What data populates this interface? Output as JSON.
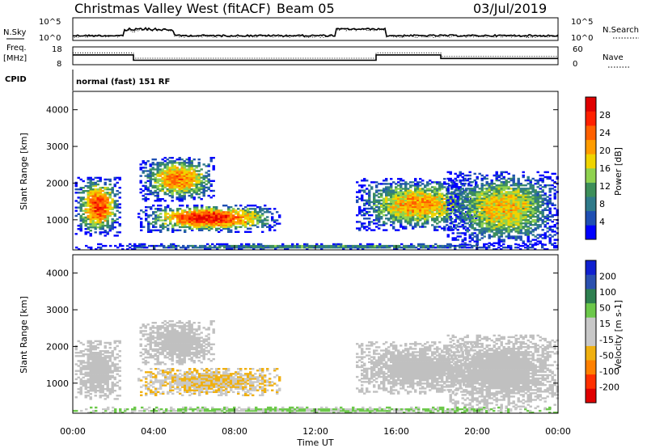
{
  "header": {
    "title": "Christmas Valley West (fitACF)",
    "beam": "Beam 05",
    "date": "03/Jul/2019"
  },
  "panel_labels": {
    "nsky": "N.Sky",
    "nsearch": "N.Search",
    "freq_line1": "Freq.",
    "freq_line2": "[MHz]",
    "nave": "Nave",
    "cpid": "CPID",
    "cpid_value": "normal (fast) 151 RF"
  },
  "colors": {
    "power_scale": [
      "#0000ff",
      "#1f4fb3",
      "#2f7a8a",
      "#3d8f5a",
      "#8fd24f",
      "#f0d400",
      "#ff9c00",
      "#ff6000",
      "#ff2000",
      "#e00000"
    ],
    "velocity_scale": [
      "#1020d0",
      "#2a50b0",
      "#2e7f50",
      "#6cc84a",
      "#c8c8c8",
      "#c8c8c8",
      "#f0b010",
      "#ff8000",
      "#ff3000",
      "#e00000"
    ],
    "ground_scatter": "#c0c0c0"
  },
  "chart_data": [
    {
      "type": "line",
      "name": "noise-panel",
      "left_label": "N.Sky",
      "right_label": "N.Search",
      "left_ticks": [
        "10^5",
        "10^0"
      ],
      "right_ticks": [
        "10^5",
        "10^0"
      ],
      "x": [
        "00:00",
        "04:00",
        "08:00",
        "12:00",
        "16:00",
        "20:00",
        "00:00"
      ],
      "yscale": "log"
    },
    {
      "type": "line",
      "name": "freq-panel",
      "left_label": "Freq. [MHz]",
      "right_label": "Nave",
      "left_ticks": [
        "18",
        "8"
      ],
      "right_ticks": [
        "60",
        "0"
      ],
      "ylim_left": [
        8,
        18
      ],
      "ylim_right": [
        0,
        60
      ],
      "freq_steps": [
        {
          "from": 0.0,
          "to": 3.0,
          "value": 13.5
        },
        {
          "from": 3.0,
          "to": 15.0,
          "value": 10.5
        },
        {
          "from": 15.0,
          "to": 18.2,
          "value": 13.5
        },
        {
          "from": 18.2,
          "to": 24.0,
          "value": 11.5
        }
      ]
    },
    {
      "type": "heatmap",
      "name": "power-panel",
      "ylabel": "Slant Range [km]",
      "y_ticks": [
        "1000",
        "2000",
        "3000",
        "4000"
      ],
      "ylim": [
        180,
        4500
      ],
      "xlim_hours": [
        0,
        24
      ],
      "colorbar_label": "Power [dB]",
      "colorbar_ticks": [
        "4",
        "8",
        "12",
        "16",
        "20",
        "24",
        "28"
      ],
      "clim": [
        0,
        30
      ]
    },
    {
      "type": "heatmap",
      "name": "velocity-panel",
      "ylabel": "Slant Range [km]",
      "xlabel": "Time UT",
      "x_ticks": [
        "00:00",
        "04:00",
        "08:00",
        "12:00",
        "16:00",
        "20:00",
        "00:00"
      ],
      "y_ticks": [
        "1000",
        "2000",
        "3000",
        "4000"
      ],
      "ylim": [
        180,
        4500
      ],
      "xlim_hours": [
        0,
        24
      ],
      "colorbar_label": "Velocity [m s-1]",
      "colorbar_ticks": [
        "200",
        "100",
        "50",
        "15",
        "-15",
        "-50",
        "-100",
        "-200"
      ],
      "clim": [
        -250,
        250
      ]
    }
  ],
  "scatter_regions": [
    {
      "t0": 0.1,
      "t1": 2.3,
      "r0": 550,
      "r1": 2150,
      "peak": 25,
      "vel": -10,
      "gs": true
    },
    {
      "t0": 3.3,
      "t1": 7.0,
      "r0": 1500,
      "r1": 2700,
      "peak": 22,
      "vel": 0,
      "gs": true
    },
    {
      "t0": 3.2,
      "t1": 10.2,
      "r0": 650,
      "r1": 1400,
      "peak": 27,
      "vel": -45,
      "gs": false
    },
    {
      "t0": 14.0,
      "t1": 20.0,
      "r0": 700,
      "r1": 2100,
      "peak": 20,
      "vel": 0,
      "gs": true
    },
    {
      "t0": 18.5,
      "t1": 24.0,
      "r0": 300,
      "r1": 2300,
      "peak": 18,
      "vel": 5,
      "gs": true
    },
    {
      "t0": 0.0,
      "t1": 24.0,
      "r0": 180,
      "r1": 320,
      "peak": 10,
      "vel": 20,
      "gs": false
    }
  ]
}
